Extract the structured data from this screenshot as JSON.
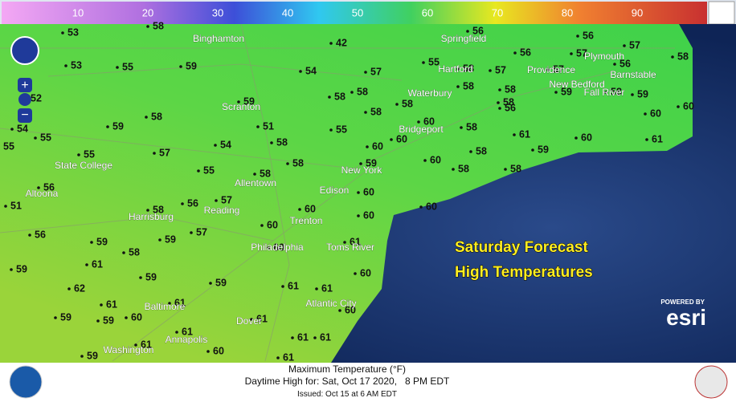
{
  "legend": {
    "labels": [
      "10",
      "20",
      "30",
      "40",
      "50",
      "60",
      "70",
      "80",
      "90"
    ]
  },
  "overlay": {
    "line1": "Saturday Forecast",
    "line2": "High Temperatures"
  },
  "footer": {
    "title": "Maximum Temperature (°F)",
    "subtitle": "Daytime High for: Sat, Oct 17 2020,   8 PM EDT",
    "issued": "Issued: Oct 15 at 6 AM EDT"
  },
  "branding": {
    "powered": "POWERED BY",
    "esri": "esri"
  },
  "cities": [
    "Binghamton",
    "Springfield",
    "Scranton",
    "Hartford",
    "Waterbury",
    "Providence",
    "Plymouth",
    "Barnstable",
    "New Bedford",
    "Fall River",
    "Bridgeport",
    "State College",
    "Altoona",
    "Allentown",
    "New York",
    "Edison",
    "Harrisburg",
    "Reading",
    "Trenton",
    "Philadelphia",
    "Toms River",
    "Atlantic City",
    "Baltimore",
    "Annapolis",
    "Dover",
    "Washington"
  ],
  "temperatures": [
    53,
    58,
    42,
    56,
    56,
    57,
    58,
    53,
    55,
    59,
    54,
    57,
    55,
    58,
    57,
    56,
    57,
    57,
    56,
    52,
    58,
    58,
    59,
    58,
    58,
    58,
    58,
    59,
    58,
    59,
    60,
    60,
    56,
    54,
    55,
    59,
    58,
    51,
    55,
    58,
    60,
    58,
    61,
    60,
    61,
    55,
    55,
    57,
    54,
    58,
    60,
    60,
    59,
    58,
    58,
    59,
    60,
    58,
    58,
    55,
    58,
    56,
    60,
    51,
    56,
    57,
    58,
    60,
    60,
    60,
    56,
    59,
    58,
    59,
    57,
    60,
    61,
    59,
    61,
    59,
    60,
    60,
    62,
    59,
    61,
    61,
    61,
    61,
    60,
    59,
    59,
    60,
    61,
    61,
    61,
    61,
    61,
    59,
    60,
    61
  ]
}
